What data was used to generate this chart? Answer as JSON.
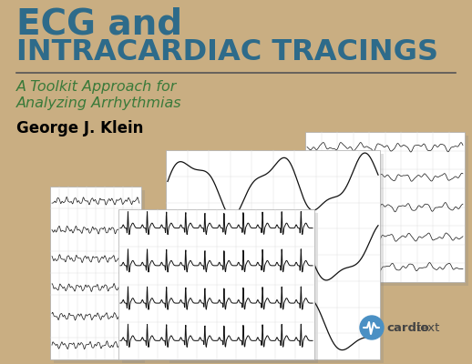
{
  "background_color": "#C9AE82",
  "title_line1": "ECG and",
  "title_line2": "INTRACARDIAC TRACINGS",
  "title_color": "#2E6B8A",
  "subtitle_line1": "A Toolkit Approach for",
  "subtitle_line2": "Analyzing Arrhythmias",
  "subtitle_color": "#3A7A3A",
  "author": "George J. Klein",
  "author_color": "#000000",
  "separator_color": "#555555",
  "cardiotext_blue": "#4A90C4",
  "cardiotext_gray": "#555555",
  "ecg_paper_color": "#FFFFFF",
  "ecg_line_color": "#111111",
  "shadow_color": "#888888",
  "grid_pink": "#F5CCCC",
  "grid_gray": "#DDDDDD"
}
